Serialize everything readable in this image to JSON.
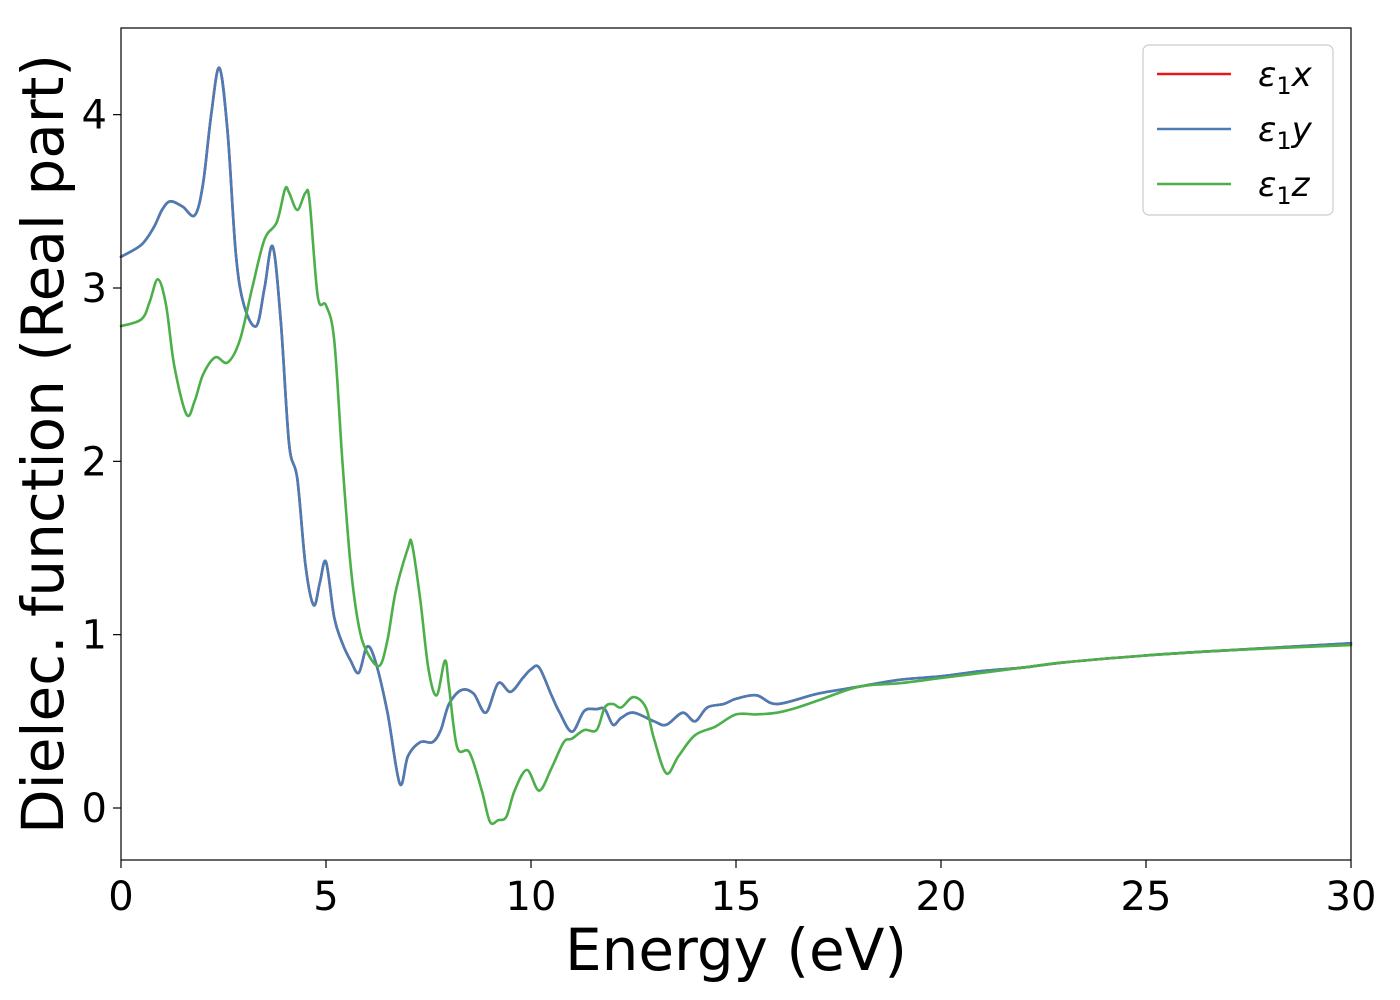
{
  "chart_data": {
    "type": "line",
    "xlabel": "Energy (eV)",
    "ylabel": "Dielec. function (Real part)",
    "xlim": [
      0,
      30
    ],
    "ylim": [
      -0.3,
      4.5
    ],
    "grid": false,
    "legend_position": "top-right",
    "x_ticks": [
      0,
      5,
      10,
      15,
      20,
      25,
      30
    ],
    "y_ticks": [
      0,
      1,
      2,
      3,
      4
    ],
    "series": [
      {
        "name": "ε₁x",
        "legend_main": "ε",
        "legend_sub": "1",
        "legend_var": "x",
        "color": "#e41a1c",
        "x": [
          0,
          0.5,
          0.8,
          1.0,
          1.2,
          1.5,
          1.8,
          2.0,
          2.2,
          2.4,
          2.6,
          2.8,
          3.0,
          3.3,
          3.5,
          3.7,
          3.9,
          4.1,
          4.3,
          4.5,
          4.7,
          4.85,
          5.0,
          5.2,
          5.4,
          5.6,
          5.8,
          6.0,
          6.2,
          6.5,
          6.8,
          7.0,
          7.3,
          7.6,
          7.8,
          8.0,
          8.3,
          8.6,
          8.9,
          9.2,
          9.5,
          9.8,
          10.0,
          10.2,
          10.5,
          10.7,
          11.0,
          11.3,
          11.6,
          11.8,
          12.0,
          12.2,
          12.5,
          13.0,
          13.3,
          13.7,
          14.0,
          14.3,
          14.7,
          15.0,
          15.5,
          16.0,
          17.0,
          18.0,
          19.0,
          20.0,
          21.0,
          22.0,
          23.0,
          25.0,
          27.0,
          30.0
        ],
        "y": [
          3.18,
          3.25,
          3.35,
          3.45,
          3.5,
          3.47,
          3.42,
          3.6,
          4.0,
          4.27,
          3.9,
          3.2,
          2.9,
          2.78,
          3.0,
          3.24,
          2.8,
          2.1,
          1.9,
          1.4,
          1.17,
          1.3,
          1.42,
          1.1,
          0.95,
          0.85,
          0.78,
          0.93,
          0.85,
          0.55,
          0.14,
          0.3,
          0.38,
          0.38,
          0.45,
          0.6,
          0.68,
          0.66,
          0.55,
          0.72,
          0.67,
          0.75,
          0.8,
          0.81,
          0.65,
          0.55,
          0.44,
          0.56,
          0.57,
          0.57,
          0.48,
          0.52,
          0.55,
          0.5,
          0.48,
          0.55,
          0.5,
          0.58,
          0.6,
          0.63,
          0.65,
          0.6,
          0.66,
          0.7,
          0.74,
          0.76,
          0.79,
          0.81,
          0.84,
          0.88,
          0.91,
          0.95
        ]
      },
      {
        "name": "ε₁y",
        "legend_main": "ε",
        "legend_sub": "1",
        "legend_var": "y",
        "color": "#4a7db5",
        "x": [
          0,
          0.5,
          0.8,
          1.0,
          1.2,
          1.5,
          1.8,
          2.0,
          2.2,
          2.4,
          2.6,
          2.8,
          3.0,
          3.3,
          3.5,
          3.7,
          3.9,
          4.1,
          4.3,
          4.5,
          4.7,
          4.85,
          5.0,
          5.2,
          5.4,
          5.6,
          5.8,
          6.0,
          6.2,
          6.5,
          6.8,
          7.0,
          7.3,
          7.6,
          7.8,
          8.0,
          8.3,
          8.6,
          8.9,
          9.2,
          9.5,
          9.8,
          10.0,
          10.2,
          10.5,
          10.7,
          11.0,
          11.3,
          11.6,
          11.8,
          12.0,
          12.2,
          12.5,
          13.0,
          13.3,
          13.7,
          14.0,
          14.3,
          14.7,
          15.0,
          15.5,
          16.0,
          17.0,
          18.0,
          19.0,
          20.0,
          21.0,
          22.0,
          23.0,
          25.0,
          27.0,
          30.0
        ],
        "y": [
          3.18,
          3.25,
          3.35,
          3.45,
          3.5,
          3.47,
          3.42,
          3.6,
          4.0,
          4.27,
          3.9,
          3.2,
          2.9,
          2.78,
          3.0,
          3.24,
          2.8,
          2.1,
          1.9,
          1.4,
          1.17,
          1.3,
          1.42,
          1.1,
          0.95,
          0.85,
          0.78,
          0.93,
          0.85,
          0.55,
          0.14,
          0.3,
          0.38,
          0.38,
          0.45,
          0.6,
          0.68,
          0.66,
          0.55,
          0.72,
          0.67,
          0.75,
          0.8,
          0.81,
          0.65,
          0.55,
          0.44,
          0.56,
          0.57,
          0.57,
          0.48,
          0.52,
          0.55,
          0.5,
          0.48,
          0.55,
          0.5,
          0.58,
          0.6,
          0.63,
          0.65,
          0.6,
          0.66,
          0.7,
          0.74,
          0.76,
          0.79,
          0.81,
          0.84,
          0.88,
          0.91,
          0.95
        ]
      },
      {
        "name": "ε₁z",
        "legend_main": "ε",
        "legend_sub": "1",
        "legend_var": "z",
        "color": "#4daf4a",
        "x": [
          0,
          0.5,
          0.7,
          0.9,
          1.1,
          1.3,
          1.6,
          1.8,
          2.0,
          2.3,
          2.6,
          2.9,
          3.2,
          3.5,
          3.8,
          4.0,
          4.1,
          4.3,
          4.5,
          4.6,
          4.8,
          5.0,
          5.2,
          5.4,
          5.6,
          5.8,
          6.0,
          6.3,
          6.5,
          6.7,
          7.0,
          7.1,
          7.3,
          7.5,
          7.7,
          7.9,
          8.0,
          8.2,
          8.5,
          8.8,
          9.0,
          9.2,
          9.4,
          9.6,
          9.9,
          10.2,
          10.5,
          10.8,
          11.0,
          11.3,
          11.6,
          11.8,
          12.0,
          12.2,
          12.5,
          12.8,
          13.0,
          13.3,
          13.6,
          14.0,
          14.5,
          15.0,
          15.5,
          16.0,
          16.5,
          17.0,
          18.0,
          19.0,
          20.0,
          21.0,
          22.0,
          23.0,
          25.0,
          27.0,
          30.0
        ],
        "y": [
          2.78,
          2.82,
          2.92,
          3.05,
          2.9,
          2.55,
          2.27,
          2.35,
          2.5,
          2.6,
          2.57,
          2.7,
          3.0,
          3.28,
          3.38,
          3.57,
          3.55,
          3.45,
          3.55,
          3.5,
          2.95,
          2.9,
          2.7,
          2.0,
          1.4,
          1.05,
          0.9,
          0.82,
          0.97,
          1.25,
          1.5,
          1.52,
          1.2,
          0.8,
          0.65,
          0.85,
          0.7,
          0.35,
          0.32,
          0.1,
          -0.08,
          -0.07,
          -0.05,
          0.1,
          0.22,
          0.1,
          0.23,
          0.38,
          0.4,
          0.45,
          0.45,
          0.58,
          0.6,
          0.58,
          0.64,
          0.58,
          0.4,
          0.2,
          0.3,
          0.42,
          0.47,
          0.54,
          0.54,
          0.55,
          0.58,
          0.62,
          0.7,
          0.72,
          0.75,
          0.78,
          0.81,
          0.84,
          0.88,
          0.91,
          0.94
        ]
      }
    ]
  }
}
